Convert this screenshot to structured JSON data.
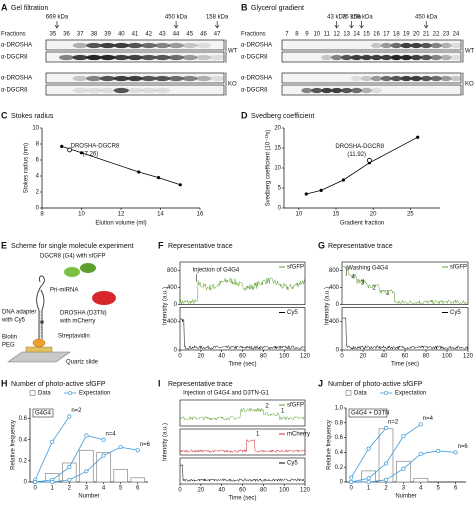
{
  "figure": {
    "A": {
      "label": "A",
      "title": "Gel filtration",
      "markers": [
        "669 kDa",
        "450 kDa",
        "158 kDa"
      ],
      "fractions_label": "Fractions",
      "fractions": [
        35,
        36,
        37,
        38,
        39,
        40,
        41,
        42,
        43,
        44,
        45,
        46,
        47
      ],
      "rows": [
        "α-DROSHA",
        "α-DGCR8",
        "α-DROSHA",
        "α-DGCR8"
      ],
      "groups": [
        "WT",
        "KO"
      ]
    },
    "B": {
      "label": "B",
      "title": "Glycerol gradient",
      "markers": [
        "43 kDa",
        "75 kDa",
        "158 kDa",
        "450 kDa"
      ],
      "fractions_label": "Fractions",
      "fractions": [
        7,
        8,
        9,
        10,
        11,
        12,
        13,
        14,
        15,
        16,
        17,
        18,
        19,
        20,
        21,
        22,
        23,
        24
      ],
      "rows": [
        "α-DROSHA",
        "α-DGCR8",
        "α-DROSHA",
        "α-DGCR8"
      ],
      "groups": [
        "WT",
        "KO"
      ]
    },
    "E": {
      "label": "E",
      "title": "Scheme for single molecule experiment",
      "dgcr8": "DGCR8 (G4) with sfGFP",
      "pri": "Pri-miRNA",
      "adapter": [
        "DNA adapter",
        "with Cy5"
      ],
      "drosha": [
        "DROSHA (D3TN)",
        "with mCherry"
      ],
      "strep": "Streptavidin",
      "biotin": [
        "Biotin",
        "PEG"
      ],
      "slide": "Quartz slide"
    },
    "F": {
      "label": "F",
      "title": "Representative trace",
      "annotation": "Injection of G4G4",
      "legend": [
        "sfGFP",
        "Cy5"
      ],
      "xlabel": "Time (sec)",
      "ylabel": "Intensity (a.u.)",
      "xlim": [
        0,
        120
      ],
      "xticks": [
        0,
        20,
        40,
        60,
        80,
        100,
        120
      ],
      "ylim_top": [
        0,
        1000
      ],
      "yticks_top": [
        0,
        400,
        800
      ],
      "ylim_bottom": [
        0,
        600
      ],
      "yticks_bottom": [
        0,
        400
      ]
    },
    "G": {
      "label": "G",
      "title": "Representative trace",
      "annotation": "Washing G4G4",
      "steps": [
        "4",
        "3",
        "2",
        "1"
      ],
      "legend": [
        "sfGFP",
        "Cy5"
      ],
      "xlabel": "Time (sec)",
      "ylabel": "Intensity (a.u.)",
      "xlim": [
        0,
        120
      ],
      "xticks": [
        0,
        20,
        40,
        60,
        80,
        100,
        120
      ],
      "ylim_top": [
        0,
        1000
      ],
      "yticks_top": [
        0,
        400,
        800
      ],
      "ylim_bottom": [
        0,
        600
      ],
      "yticks_bottom": [
        0,
        400
      ]
    },
    "I": {
      "label": "I",
      "title": "Representative trace",
      "annotation": "Injection of G4G4 and D3TN-G1",
      "steps": [
        "2",
        "1",
        "1"
      ],
      "legend": [
        "sfGFP",
        "mCherry",
        "Cy5"
      ],
      "xlabel": "Time (sec)",
      "ylabel": "Intensity (a.u.)",
      "xlim": [
        0,
        120
      ],
      "xticks": [
        0,
        20,
        40,
        60,
        80,
        100,
        120
      ]
    }
  },
  "chart_data": [
    {
      "type": "line",
      "panel": "C",
      "title": "Stokes radius",
      "xlabel": "Elution volume (ml)",
      "ylabel": "Stokes radius (nm)",
      "x": [
        9.0,
        10.0,
        12.9,
        13.9,
        15.0
      ],
      "values": [
        7.7,
        6.9,
        4.5,
        3.8,
        2.9
      ],
      "color": "#000000",
      "xlim": [
        8,
        16
      ],
      "xticks": [
        8,
        10,
        12,
        14,
        16
      ],
      "ylim": [
        0,
        10
      ],
      "yticks": [
        0,
        2,
        4,
        6,
        8,
        10
      ],
      "highlight": {
        "x": 9.4,
        "value": 7.26
      },
      "annotation": [
        "DROSHA-DGCR8",
        "(7.26)"
      ]
    },
    {
      "type": "line",
      "panel": "D",
      "title": "Svedberg coefficient",
      "xlabel": "Gradient fraction",
      "ylabel": "Svedberg coefficient (10⁻¹³s)",
      "x": [
        11,
        13,
        16,
        19.5,
        26
      ],
      "values": [
        3.5,
        4.4,
        7.0,
        11.3,
        17.7
      ],
      "color": "#000000",
      "xlim": [
        8,
        29
      ],
      "xticks": [
        10,
        15,
        20,
        25
      ],
      "ylim": [
        0,
        20
      ],
      "yticks": [
        0,
        5,
        10,
        15,
        20
      ],
      "highlight": {
        "x": 19.5,
        "value": 11.92
      },
      "annotation": [
        "DROSHA-DGCR8",
        "(11.92)"
      ]
    },
    {
      "type": "histogram",
      "panel": "H",
      "title": "Number of photo-active sfGFP",
      "subtitle": "G4G4",
      "xlabel": "Number",
      "ylabel": "Relative frequency",
      "xlim": [
        -0.3,
        6.6
      ],
      "xticks": [
        0,
        1,
        2,
        3,
        4,
        5,
        6
      ],
      "ylim": [
        0,
        0.7
      ],
      "yticks": [
        0,
        0.2,
        0.4,
        0.6
      ],
      "bars": {
        "name": "Data",
        "color": "#888888",
        "x": [
          1,
          2,
          3,
          4,
          5,
          6
        ],
        "values": [
          0.08,
          0.18,
          0.3,
          0.28,
          0.12,
          0.04
        ]
      },
      "expectation": {
        "name": "Expectation",
        "color": "#3a9ad9",
        "curves": [
          {
            "label": "n=2",
            "x": [
              0,
              1,
              2
            ],
            "values": [
              0.02,
              0.38,
              0.62
            ]
          },
          {
            "label": "n=4",
            "x": [
              0,
              1,
              2,
              3,
              4
            ],
            "values": [
              0,
              0.02,
              0.14,
              0.44,
              0.4
            ]
          },
          {
            "label": "n=6",
            "x": [
              0,
              1,
              2,
              3,
              4,
              5,
              6
            ],
            "values": [
              0,
              0,
              0.02,
              0.1,
              0.25,
              0.33,
              0.3
            ]
          }
        ]
      }
    },
    {
      "type": "histogram",
      "panel": "J",
      "title": "Number of photo-active sfGFP",
      "subtitle": "G4G4 + D3TN",
      "xlabel": "Number",
      "ylabel": "Relative frequency",
      "xlim": [
        -0.3,
        6.6
      ],
      "xticks": [
        0,
        1,
        2,
        3,
        4,
        5,
        6
      ],
      "ylim": [
        0,
        1.0
      ],
      "yticks": [
        0,
        0.2,
        0.4,
        0.6,
        0.8,
        {
          "value": 1,
          "label": "1.0"
        }
      ],
      "bars": {
        "name": "Data",
        "color": "#888888",
        "x": [
          1,
          2,
          3,
          4
        ],
        "values": [
          0.15,
          0.72,
          0.28,
          0.05
        ]
      },
      "expectation": {
        "name": "Expectation",
        "color": "#3a9ad9",
        "curves": [
          {
            "label": "n=2",
            "x": [
              0,
              1,
              2
            ],
            "values": [
              0.06,
              0.45,
              0.73
            ]
          },
          {
            "label": "n=4",
            "x": [
              0,
              1,
              2,
              3,
              4
            ],
            "values": [
              0,
              0.05,
              0.25,
              0.62,
              0.78
            ]
          },
          {
            "label": "n=6",
            "x": [
              0,
              1,
              2,
              3,
              4,
              5,
              6
            ],
            "values": [
              0,
              0,
              0.03,
              0.18,
              0.38,
              0.42,
              0.4
            ]
          }
        ]
      }
    }
  ]
}
